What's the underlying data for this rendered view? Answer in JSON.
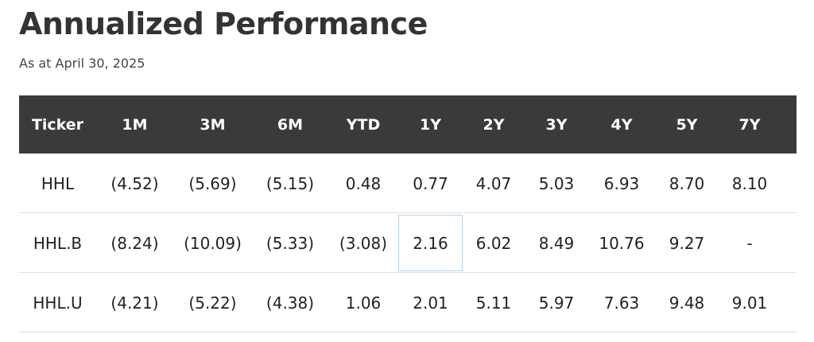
{
  "header": {
    "title": "Annualized Performance",
    "subtitle": "As at April 30, 2025"
  },
  "table": {
    "columns": [
      "Ticker",
      "1M",
      "3M",
      "6M",
      "YTD",
      "1Y",
      "2Y",
      "3Y",
      "4Y",
      "5Y",
      "7Y"
    ],
    "rows": [
      [
        "HHL",
        "(4.52)",
        "(5.69)",
        "(5.15)",
        "0.48",
        "0.77",
        "4.07",
        "5.03",
        "6.93",
        "8.70",
        "8.10"
      ],
      [
        "HHL.B",
        "(8.24)",
        "(10.09)",
        "(5.33)",
        "(3.08)",
        "2.16",
        "6.02",
        "8.49",
        "10.76",
        "9.27",
        "-"
      ],
      [
        "HHL.U",
        "(4.21)",
        "(5.22)",
        "(4.38)",
        "1.06",
        "2.01",
        "5.11",
        "5.97",
        "7.63",
        "9.48",
        "9.01"
      ]
    ]
  }
}
